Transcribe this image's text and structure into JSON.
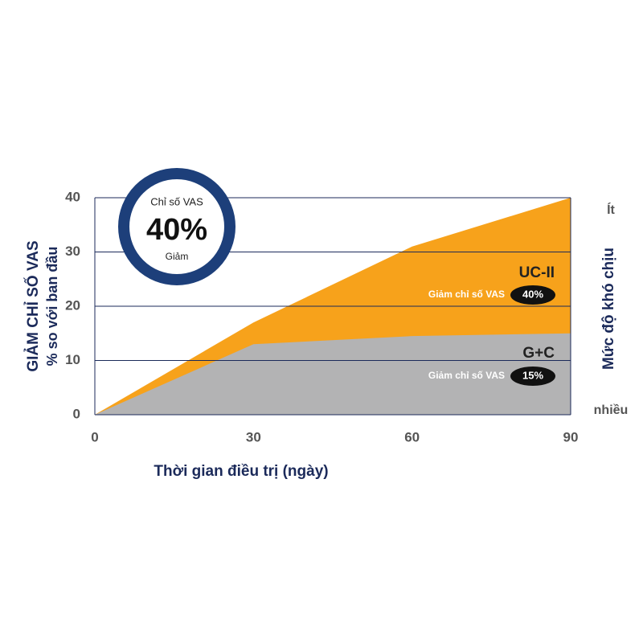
{
  "chart_data": {
    "type": "area",
    "x": [
      0,
      30,
      60,
      90
    ],
    "xlim": [
      0,
      90
    ],
    "xticks": [
      0,
      30,
      60,
      90
    ],
    "ylim": [
      0,
      40
    ],
    "yticks": [
      0,
      10,
      20,
      30,
      40
    ],
    "grid": true,
    "y_label": [
      "GIẢM CHỈ SỐ VAS",
      "% so với ban đầu"
    ],
    "x_label": "Thời gian điều trị (ngày)",
    "y2_label": "Mức độ khó chịu",
    "y2_top": "Ít",
    "y2_bottom": "nhiều",
    "badge": {
      "title": "Chỉ số VAS",
      "value": "40%",
      "subtitle": "Giảm"
    },
    "series": [
      {
        "name": "UC-II",
        "color": "#f7a21b",
        "values": [
          0,
          17,
          31,
          40
        ],
        "note": "Giảm chỉ số VAS",
        "pill": "40%"
      },
      {
        "name": "G+C",
        "color": "#b3b3b4",
        "values": [
          0,
          13,
          14.5,
          15
        ],
        "note": "Giảm chỉ số VAS",
        "pill": "15%"
      }
    ]
  }
}
